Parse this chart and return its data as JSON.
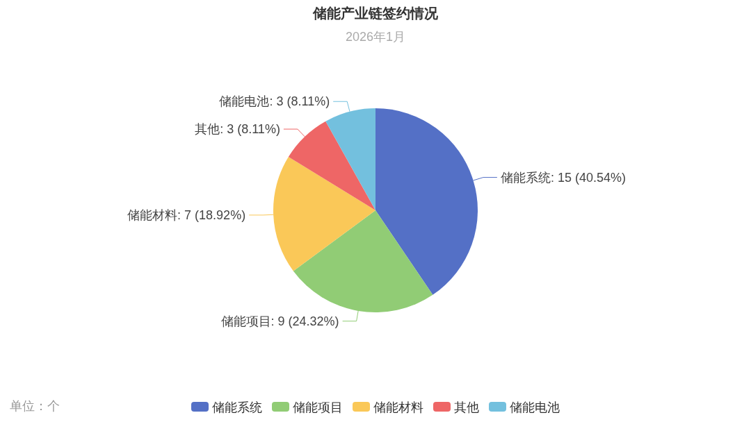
{
  "chart_data": {
    "type": "pie",
    "title": "储能产业链签约情况",
    "subtitle": "2026年1月",
    "categories": [
      "储能系统",
      "储能项目",
      "储能材料",
      "其他",
      "储能电池"
    ],
    "values": [
      15,
      9,
      7,
      3,
      3
    ],
    "colors": [
      "#5470c6",
      "#91cc75",
      "#fac858",
      "#ee6666",
      "#73c0de"
    ],
    "value_labels": [
      "储能系统: 15 (40.54%)",
      "储能项目: 9 (24.32%)",
      "储能材料: 7 (18.92%)",
      "其他: 3 (8.11%)",
      "储能电池: 3 (8.11%)"
    ],
    "annotations": [
      "单位：个"
    ],
    "legend": "bottom"
  }
}
